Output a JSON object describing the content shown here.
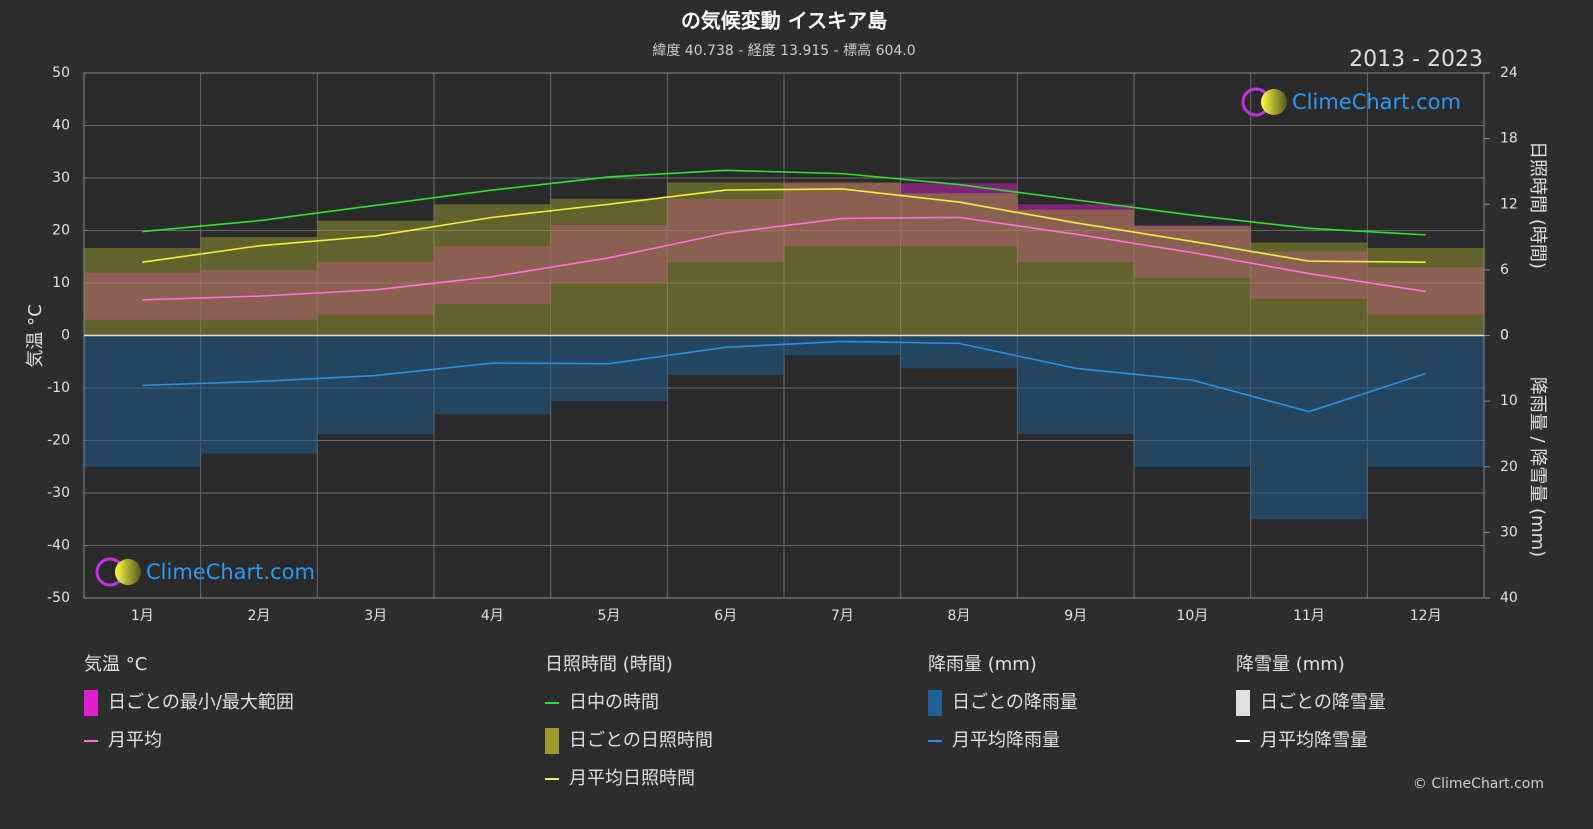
{
  "chart_data": {
    "type": "climate",
    "title": "の気候変動 イスキア島",
    "subtitle": "緯度 40.738 - 経度 13.915 - 標高 604.0",
    "period": "2013 - 2023",
    "logo": "ClimeChart.com",
    "copyright": "© ClimeChart.com",
    "ylabel": "気温 °C",
    "y2label": "日照時間 (時間)",
    "y3label": "降雨量 / 降雪量 (mm)",
    "categories": [
      "1月",
      "2月",
      "3月",
      "4月",
      "5月",
      "6月",
      "7月",
      "8月",
      "9月",
      "10月",
      "11月",
      "12月"
    ],
    "ylim": [
      -50,
      50
    ],
    "yticks": [
      -50,
      -40,
      -30,
      -20,
      -10,
      0,
      10,
      20,
      30,
      40,
      50
    ],
    "y2lim": [
      0,
      24
    ],
    "y2ticks": [
      0,
      6,
      12,
      18,
      24
    ],
    "y3lim": [
      0,
      40
    ],
    "y3ticks": [
      0,
      10,
      20,
      30,
      40
    ],
    "grid": true,
    "groups": [
      {
        "title": "気温 °C",
        "series": [
          {
            "name": "日ごとの最小/最大範囲",
            "kind": "band",
            "axis": "y",
            "color": "#e020d0",
            "low": [
              3,
              3,
              4,
              6,
              10,
              14,
              17,
              17,
              14,
              11,
              7,
              4
            ],
            "high": [
              12,
              12.5,
              14,
              17,
              21,
              26,
              29,
              29,
              25,
              21,
              16,
              13
            ]
          },
          {
            "name": "月平均",
            "kind": "line",
            "axis": "y",
            "color": "#ff70e0",
            "values": [
              6.8,
              7.5,
              8.7,
              11.2,
              14.8,
              19.5,
              22.3,
              22.5,
              19.3,
              15.8,
              11.8,
              8.4
            ]
          }
        ]
      },
      {
        "title": "日照時間 (時間)",
        "series": [
          {
            "name": "日中の時間",
            "kind": "line",
            "axis": "y2",
            "color": "#30e030",
            "values": [
              9.5,
              10.5,
              11.9,
              13.3,
              14.5,
              15.1,
              14.8,
              13.8,
              12.4,
              11,
              9.8,
              9.2
            ]
          },
          {
            "name": "日ごとの日照時間",
            "kind": "bar",
            "axis": "y2",
            "color": "#9a9a30",
            "values": [
              8,
              9,
              10.5,
              12,
              12.5,
              14,
              14,
              13,
              11.5,
              10,
              8.5,
              8
            ]
          },
          {
            "name": "月平均日照時間",
            "kind": "line",
            "axis": "y2",
            "color": "#f0f040",
            "values": [
              6.7,
              8.2,
              9.1,
              10.8,
              12,
              13.3,
              13.4,
              12.2,
              10.3,
              8.6,
              6.8,
              6.7
            ]
          }
        ]
      },
      {
        "title": "降雨量 (mm)",
        "series": [
          {
            "name": "日ごとの降雨量",
            "kind": "bar",
            "axis": "y3",
            "color": "#1e5f96",
            "values": [
              20,
              18,
              15,
              12,
              10,
              6,
              3,
              5,
              15,
              20,
              28,
              20
            ]
          },
          {
            "name": "月平均降雨量",
            "kind": "line",
            "axis": "y3",
            "color": "#2a8ee0",
            "values": [
              7.6,
              7,
              6.1,
              4.2,
              4.3,
              1.8,
              0.9,
              1.2,
              5,
              6.8,
              11.6,
              5.8
            ]
          }
        ]
      },
      {
        "title": "降雪量 (mm)",
        "series": [
          {
            "name": "日ごとの降雪量",
            "kind": "bar",
            "axis": "y3",
            "color": "#e0e0e0"
          },
          {
            "name": "月平均降雪量",
            "kind": "line",
            "axis": "y3",
            "color": "#ffffff"
          }
        ]
      }
    ]
  }
}
